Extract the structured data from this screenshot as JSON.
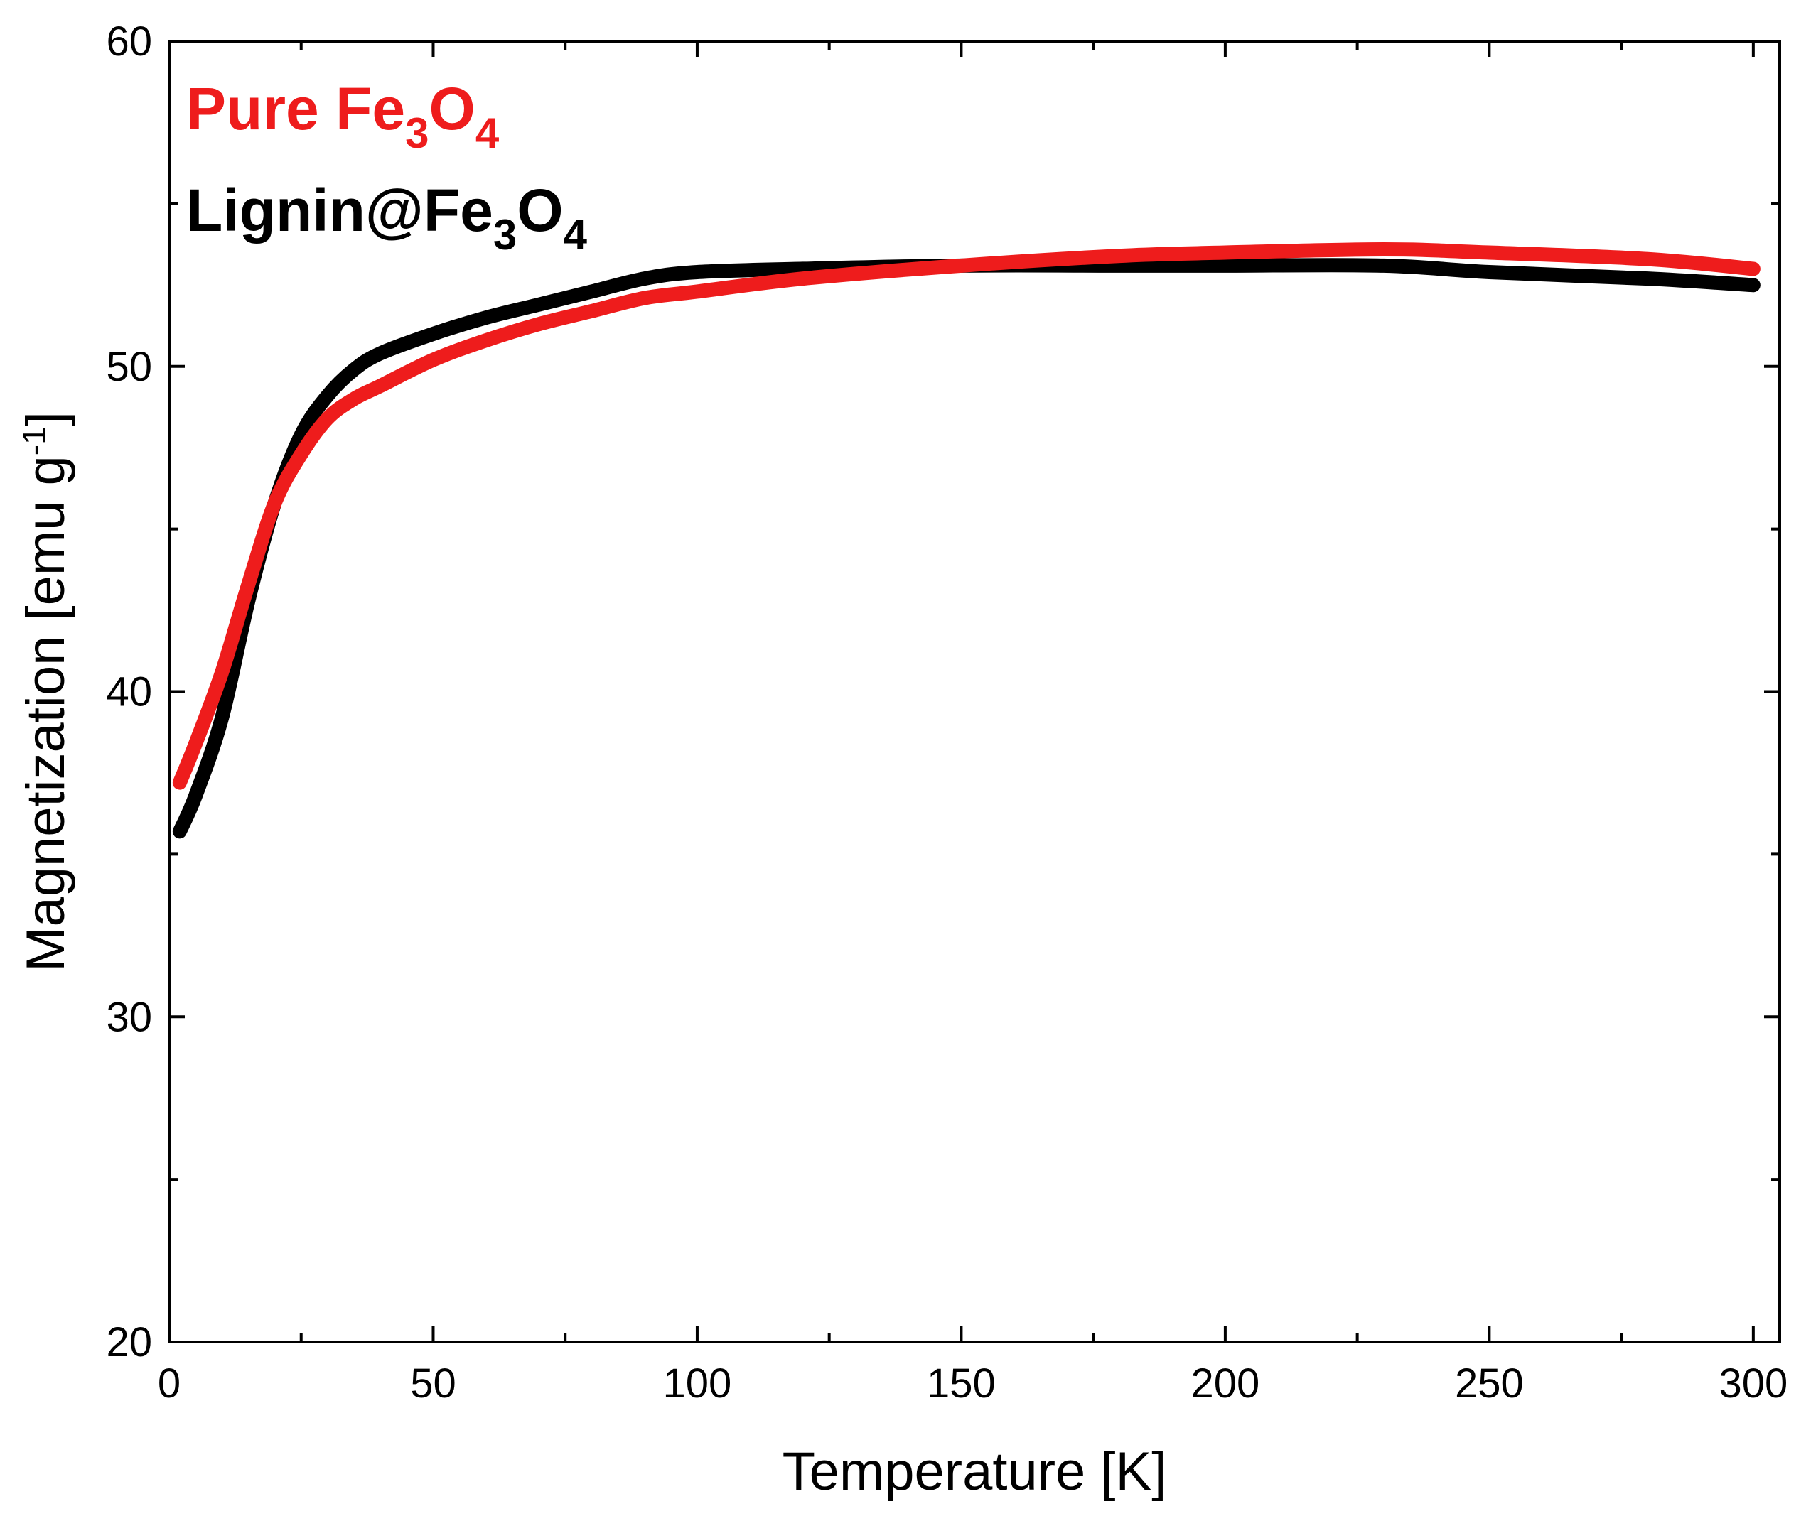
{
  "chart_data": {
    "type": "line",
    "xlabel": "Temperature [K]",
    "ylabel_main": "Magnetization [emu g",
    "ylabel_sup": "-1",
    "ylabel_tail": "]",
    "xlim": [
      0,
      305
    ],
    "ylim": [
      20,
      60
    ],
    "xticks": [
      0,
      50,
      100,
      150,
      200,
      250,
      300
    ],
    "yticks": [
      20,
      30,
      40,
      50,
      60
    ],
    "xminor": [
      25,
      75,
      125,
      175,
      225,
      275
    ],
    "yminor": [
      25,
      35,
      45,
      55
    ],
    "series": [
      {
        "name": "Lignin@Fe3O4",
        "label_parts": [
          "Lignin@Fe",
          "3",
          "O",
          "4"
        ],
        "color": "#000000",
        "x": [
          2,
          5,
          10,
          15,
          20,
          25,
          30,
          35,
          40,
          50,
          60,
          70,
          80,
          90,
          100,
          120,
          150,
          180,
          200,
          230,
          250,
          280,
          300
        ],
        "y": [
          35.7,
          36.8,
          39.2,
          42.8,
          45.8,
          47.9,
          49.1,
          49.9,
          50.4,
          51.0,
          51.5,
          51.9,
          52.3,
          52.7,
          52.9,
          53.0,
          53.1,
          53.1,
          53.1,
          53.1,
          52.9,
          52.7,
          52.5
        ]
      },
      {
        "name": "Pure Fe3O4",
        "label_parts": [
          "Pure Fe",
          "3",
          "O",
          "4"
        ],
        "color": "#ee1c1c",
        "x": [
          2,
          5,
          10,
          15,
          20,
          25,
          30,
          35,
          40,
          50,
          60,
          70,
          80,
          90,
          100,
          120,
          150,
          180,
          200,
          230,
          250,
          280,
          300
        ],
        "y": [
          37.2,
          38.4,
          40.6,
          43.3,
          45.8,
          47.3,
          48.4,
          49.0,
          49.4,
          50.2,
          50.8,
          51.3,
          51.7,
          52.1,
          52.3,
          52.7,
          53.1,
          53.4,
          53.5,
          53.6,
          53.5,
          53.3,
          53.0
        ]
      }
    ]
  }
}
